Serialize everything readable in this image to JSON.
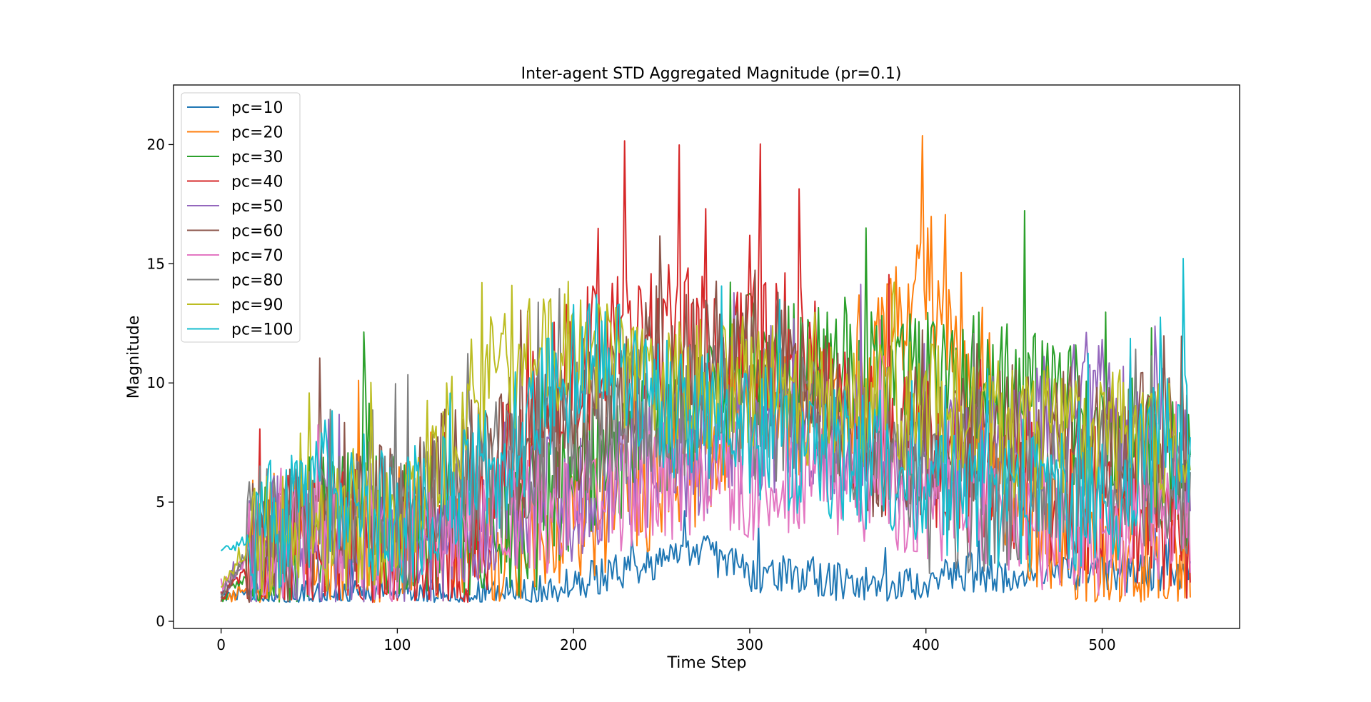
{
  "chart_data": {
    "type": "line",
    "title": "Inter-agent STD Aggregated Magnitude (pr=0.1)",
    "xlabel": "Time Step",
    "ylabel": "Magnitude",
    "xlim": [
      -27,
      578
    ],
    "ylim": [
      -0.3,
      22.5
    ],
    "xticks": [
      0,
      100,
      200,
      300,
      400,
      500
    ],
    "yticks": [
      0,
      5,
      10,
      15,
      20
    ],
    "grid": false,
    "legend_position": "top-left",
    "num_points": 551,
    "series": [
      {
        "name": "pc=10",
        "color": "#1f77b4",
        "keypoints": [
          [
            0,
            1.0
          ],
          [
            20,
            1.0
          ],
          [
            30,
            1.0
          ],
          [
            50,
            1.0
          ],
          [
            100,
            1.0
          ],
          [
            150,
            1.0
          ],
          [
            180,
            1.2
          ],
          [
            200,
            1.5
          ],
          [
            220,
            2.0
          ],
          [
            250,
            2.5
          ],
          [
            270,
            3.0
          ],
          [
            300,
            2.0
          ],
          [
            330,
            2.0
          ],
          [
            360,
            1.5
          ],
          [
            400,
            1.5
          ],
          [
            410,
            2.0
          ]
        ],
        "noise": 0.8
      },
      {
        "name": "pc=20",
        "color": "#ff7f0e",
        "keypoints": [
          [
            0,
            0.8
          ],
          [
            20,
            1.5
          ],
          [
            30,
            3.5
          ],
          [
            50,
            3.5
          ],
          [
            80,
            3.0
          ],
          [
            100,
            4.0
          ],
          [
            150,
            3.5
          ],
          [
            180,
            2.5
          ],
          [
            200,
            4.0
          ],
          [
            250,
            6.0
          ],
          [
            300,
            8.0
          ],
          [
            350,
            9.0
          ],
          [
            380,
            12.0
          ],
          [
            400,
            14.0
          ],
          [
            420,
            10.0
          ],
          [
            450,
            5.0
          ],
          [
            500,
            2.0
          ],
          [
            550,
            2.0
          ]
        ],
        "noise": 2.8
      },
      {
        "name": "pc=30",
        "color": "#2ca02c",
        "keypoints": [
          [
            0,
            1.0
          ],
          [
            20,
            2.0
          ],
          [
            30,
            3.5
          ],
          [
            50,
            4.0
          ],
          [
            80,
            4.5
          ],
          [
            100,
            4.0
          ],
          [
            150,
            4.0
          ],
          [
            170,
            3.5
          ],
          [
            200,
            6.0
          ],
          [
            250,
            8.0
          ],
          [
            300,
            11.0
          ],
          [
            350,
            10.0
          ],
          [
            400,
            10.0
          ],
          [
            450,
            10.0
          ],
          [
            500,
            8.0
          ],
          [
            550,
            6.0
          ]
        ],
        "noise": 3.0
      },
      {
        "name": "pc=40",
        "color": "#d62728",
        "keypoints": [
          [
            0,
            1.0
          ],
          [
            20,
            2.5
          ],
          [
            50,
            3.5
          ],
          [
            100,
            3.0
          ],
          [
            140,
            2.5
          ],
          [
            160,
            6.0
          ],
          [
            200,
            11.0
          ],
          [
            250,
            12.0
          ],
          [
            300,
            12.0
          ],
          [
            330,
            11.0
          ],
          [
            360,
            8.0
          ],
          [
            400,
            7.0
          ],
          [
            450,
            6.0
          ],
          [
            500,
            5.0
          ],
          [
            550,
            4.0
          ]
        ],
        "noise": 3.2
      },
      {
        "name": "pc=50",
        "color": "#9467bd",
        "keypoints": [
          [
            0,
            1.2
          ],
          [
            20,
            3.0
          ],
          [
            50,
            3.5
          ],
          [
            100,
            3.0
          ],
          [
            150,
            4.5
          ],
          [
            200,
            5.5
          ],
          [
            250,
            7.0
          ],
          [
            300,
            8.0
          ],
          [
            350,
            8.0
          ],
          [
            400,
            6.0
          ],
          [
            450,
            8.0
          ],
          [
            500,
            9.0
          ],
          [
            550,
            7.0
          ]
        ],
        "noise": 3.0
      },
      {
        "name": "pc=60",
        "color": "#8c564b",
        "keypoints": [
          [
            0,
            1.0
          ],
          [
            20,
            3.5
          ],
          [
            50,
            4.0
          ],
          [
            100,
            4.5
          ],
          [
            120,
            6.0
          ],
          [
            150,
            6.5
          ],
          [
            200,
            8.0
          ],
          [
            250,
            11.0
          ],
          [
            300,
            12.0
          ],
          [
            330,
            10.0
          ],
          [
            370,
            7.0
          ],
          [
            400,
            8.0
          ],
          [
            450,
            8.0
          ],
          [
            500,
            8.0
          ],
          [
            550,
            7.0
          ]
        ],
        "noise": 3.0
      },
      {
        "name": "pc=70",
        "color": "#e377c2",
        "keypoints": [
          [
            0,
            1.5
          ],
          [
            20,
            3.0
          ],
          [
            50,
            3.5
          ],
          [
            100,
            3.0
          ],
          [
            150,
            4.5
          ],
          [
            200,
            4.5
          ],
          [
            250,
            6.0
          ],
          [
            300,
            6.0
          ],
          [
            350,
            6.0
          ],
          [
            400,
            5.0
          ],
          [
            450,
            4.0
          ],
          [
            500,
            3.5
          ],
          [
            550,
            4.0
          ]
        ],
        "noise": 2.6
      },
      {
        "name": "pc=80",
        "color": "#7f7f7f",
        "keypoints": [
          [
            0,
            1.2
          ],
          [
            20,
            3.5
          ],
          [
            50,
            4.5
          ],
          [
            80,
            5.0
          ],
          [
            100,
            4.0
          ],
          [
            150,
            6.0
          ],
          [
            200,
            8.0
          ],
          [
            250,
            9.0
          ],
          [
            300,
            9.0
          ],
          [
            350,
            8.0
          ],
          [
            400,
            5.0
          ],
          [
            450,
            5.0
          ],
          [
            500,
            6.0
          ],
          [
            550,
            5.0
          ]
        ],
        "noise": 3.0
      },
      {
        "name": "pc=90",
        "color": "#bcbd22",
        "keypoints": [
          [
            0,
            1.5
          ],
          [
            20,
            3.5
          ],
          [
            50,
            4.0
          ],
          [
            100,
            4.0
          ],
          [
            120,
            7.0
          ],
          [
            150,
            10.0
          ],
          [
            170,
            11.0
          ],
          [
            200,
            11.0
          ],
          [
            250,
            10.0
          ],
          [
            300,
            10.0
          ],
          [
            350,
            9.0
          ],
          [
            400,
            9.0
          ],
          [
            450,
            8.0
          ],
          [
            500,
            8.0
          ],
          [
            550,
            7.0
          ]
        ],
        "noise": 2.8
      },
      {
        "name": "pc=100",
        "color": "#17becf",
        "keypoints": [
          [
            0,
            3.0
          ],
          [
            20,
            3.5
          ],
          [
            50,
            4.5
          ],
          [
            60,
            6.0
          ],
          [
            100,
            4.0
          ],
          [
            150,
            6.0
          ],
          [
            190,
            10.0
          ],
          [
            220,
            11.0
          ],
          [
            250,
            9.0
          ],
          [
            300,
            8.0
          ],
          [
            350,
            7.0
          ],
          [
            400,
            6.0
          ],
          [
            450,
            5.0
          ],
          [
            500,
            5.0
          ],
          [
            550,
            8.0
          ]
        ],
        "noise": 3.0
      }
    ]
  }
}
